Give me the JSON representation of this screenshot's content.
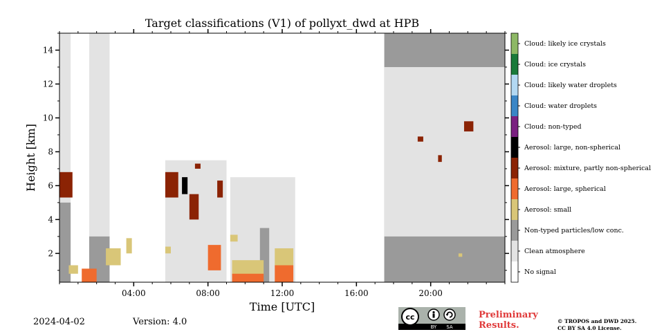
{
  "chart_data": {
    "type": "heatmap",
    "title": "Target classifications (V1) of pollyxt_dwd at HPB",
    "xlabel": "Time [UTC]",
    "ylabel": "Height [km]",
    "xlim_hours": [
      0,
      24
    ],
    "ylim_km": [
      0.3,
      15.0
    ],
    "x_ticks": [
      {
        "hour": 4,
        "label": "04:00"
      },
      {
        "hour": 8,
        "label": "08:00"
      },
      {
        "hour": 12,
        "label": "12:00"
      },
      {
        "hour": 16,
        "label": "16:00"
      },
      {
        "hour": 20,
        "label": "20:00"
      }
    ],
    "y_ticks": [
      {
        "km": 2,
        "label": "2"
      },
      {
        "km": 4,
        "label": "4"
      },
      {
        "km": 6,
        "label": "6"
      },
      {
        "km": 8,
        "label": "8"
      },
      {
        "km": 10,
        "label": "10"
      },
      {
        "km": 12,
        "label": "12"
      },
      {
        "km": 14,
        "label": "14"
      }
    ],
    "legend_position": "right colorbar",
    "classes": [
      {
        "label": "No signal",
        "color": "#ffffff"
      },
      {
        "label": "Clean atmosphere",
        "color": "#e3e3e3"
      },
      {
        "label": "Non-typed particles/low conc.",
        "color": "#9a9a9a"
      },
      {
        "label": "Aerosol: small",
        "color": "#d9c678"
      },
      {
        "label": "Aerosol: large, spherical",
        "color": "#ef6b2e"
      },
      {
        "label": "Aerosol: mixture, partly non-spherical",
        "color": "#8b2304"
      },
      {
        "label": "Aerosol: large, non-spherical",
        "color": "#000000"
      },
      {
        "label": "Cloud: non-typed",
        "color": "#7a2080"
      },
      {
        "label": "Cloud: water droplets",
        "color": "#3a86c6"
      },
      {
        "label": "Cloud: likely water droplets",
        "color": "#b2d8f2"
      },
      {
        "label": "Cloud: ice crystals",
        "color": "#1a7a3a"
      },
      {
        "label": "Cloud: likely ice crystals",
        "color": "#8db865"
      }
    ],
    "regions": [
      {
        "class": 1,
        "t0": 0.0,
        "t1": 0.6,
        "h0": 0.3,
        "h1": 15.0
      },
      {
        "class": 2,
        "t0": 0.0,
        "t1": 0.6,
        "h0": 0.3,
        "h1": 5.0
      },
      {
        "class": 1,
        "t0": 1.6,
        "t1": 2.7,
        "h0": 0.3,
        "h1": 15.0
      },
      {
        "class": 2,
        "t0": 1.6,
        "t1": 2.7,
        "h0": 0.3,
        "h1": 3.0
      },
      {
        "class": 1,
        "t0": 5.7,
        "t1": 9.0,
        "h0": 0.3,
        "h1": 7.5
      },
      {
        "class": 1,
        "t0": 9.2,
        "t1": 12.7,
        "h0": 0.3,
        "h1": 6.5
      },
      {
        "class": 2,
        "t0": 10.8,
        "t1": 11.3,
        "h0": 0.3,
        "h1": 3.5
      },
      {
        "class": 2,
        "t0": 17.5,
        "t1": 24.0,
        "h0": 0.3,
        "h1": 15.0
      },
      {
        "class": 1,
        "t0": 17.5,
        "t1": 24.0,
        "h0": 3.0,
        "h1": 13.0
      },
      {
        "class": 2,
        "t0": 17.5,
        "t1": 24.0,
        "h0": 0.3,
        "h1": 2.2
      },
      {
        "class": 5,
        "t0": 0.0,
        "t1": 0.7,
        "h0": 5.3,
        "h1": 6.8
      },
      {
        "class": 3,
        "t0": 0.5,
        "t1": 1.0,
        "h0": 0.8,
        "h1": 1.3
      },
      {
        "class": 4,
        "t0": 1.2,
        "t1": 2.0,
        "h0": 0.3,
        "h1": 1.1
      },
      {
        "class": 3,
        "t0": 2.5,
        "t1": 3.3,
        "h0": 1.3,
        "h1": 2.3
      },
      {
        "class": 3,
        "t0": 3.6,
        "t1": 3.9,
        "h0": 2.0,
        "h1": 2.9
      },
      {
        "class": 5,
        "t0": 5.7,
        "t1": 6.4,
        "h0": 5.3,
        "h1": 6.8
      },
      {
        "class": 6,
        "t0": 6.6,
        "t1": 6.9,
        "h0": 5.5,
        "h1": 6.5
      },
      {
        "class": 5,
        "t0": 7.0,
        "t1": 7.5,
        "h0": 4.0,
        "h1": 5.5
      },
      {
        "class": 5,
        "t0": 7.3,
        "t1": 7.6,
        "h0": 7.0,
        "h1": 7.3
      },
      {
        "class": 5,
        "t0": 8.5,
        "t1": 8.8,
        "h0": 5.3,
        "h1": 6.3
      },
      {
        "class": 3,
        "t0": 5.7,
        "t1": 6.0,
        "h0": 2.0,
        "h1": 2.4
      },
      {
        "class": 4,
        "t0": 8.0,
        "t1": 8.7,
        "h0": 1.0,
        "h1": 2.5
      },
      {
        "class": 3,
        "t0": 9.2,
        "t1": 9.6,
        "h0": 2.7,
        "h1": 3.1
      },
      {
        "class": 3,
        "t0": 9.3,
        "t1": 11.0,
        "h0": 0.7,
        "h1": 1.6
      },
      {
        "class": 4,
        "t0": 9.3,
        "t1": 11.0,
        "h0": 0.3,
        "h1": 0.8
      },
      {
        "class": 3,
        "t0": 11.6,
        "t1": 12.6,
        "h0": 1.3,
        "h1": 2.3
      },
      {
        "class": 4,
        "t0": 11.6,
        "t1": 12.6,
        "h0": 0.3,
        "h1": 1.3
      },
      {
        "class": 5,
        "t0": 19.3,
        "t1": 19.6,
        "h0": 8.6,
        "h1": 8.9
      },
      {
        "class": 5,
        "t0": 20.4,
        "t1": 20.6,
        "h0": 7.4,
        "h1": 7.8
      },
      {
        "class": 5,
        "t0": 21.8,
        "t1": 22.3,
        "h0": 9.2,
        "h1": 9.8
      },
      {
        "class": 3,
        "t0": 21.5,
        "t1": 21.7,
        "h0": 1.8,
        "h1": 2.0
      }
    ]
  },
  "footer": {
    "date": "2024-04-02",
    "version": "Version: 4.0",
    "preliminary_line1": "Preliminary",
    "preliminary_line2": "Results.",
    "copyright_line1": "© TROPOS and DWD 2025.",
    "copyright_line2": "CC BY SA 4.0 License.",
    "cc_by": "BY",
    "cc_sa": "SA",
    "cc_icon": "cc-logo-icon"
  }
}
